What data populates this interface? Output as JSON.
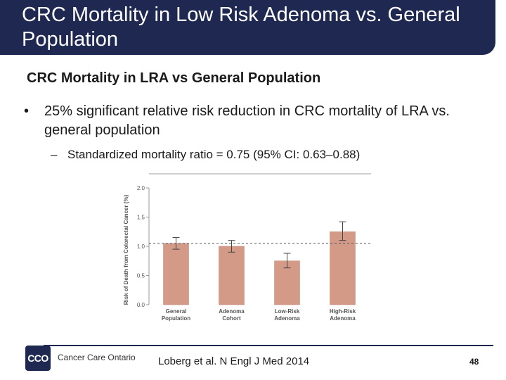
{
  "slide": {
    "title": "CRC Mortality in Low Risk Adenoma vs. General Population",
    "subtitle": "CRC Mortality in LRA vs General Population",
    "bullet_symbol": "•",
    "bullet_text": "25% significant relative risk reduction in CRC mortality of LRA vs. general population",
    "subbullet_symbol": "–",
    "subbullet_text": "Standardized mortality ratio = 0.75 (95% CI: 0.63–0.88)",
    "citation": "Loberg et al. N Engl J Med 2014",
    "page_number": "48"
  },
  "logo": {
    "mark": "CCO",
    "name": "Cancer Care Ontario"
  },
  "colors": {
    "title_bar": "#1e2850",
    "bar_fill": "#d49a88",
    "bar_stroke": "#c08574",
    "axis": "#999999",
    "reference_line": "#555555"
  },
  "chart_data": {
    "type": "bar",
    "title": "",
    "xlabel": "",
    "ylabel": "Risk of Death from Colorectal Cancer (%)",
    "ylim": [
      0,
      2.0
    ],
    "yticks": [
      "0.0",
      "0.5",
      "1.0",
      "1.5",
      "2.0"
    ],
    "ytick_values": [
      0,
      0.5,
      1.0,
      1.5,
      2.0
    ],
    "reference_line": 1.05,
    "categories": [
      [
        "General",
        "Population"
      ],
      [
        "Adenoma",
        "Cohort"
      ],
      [
        "Low-Risk",
        "Adenoma"
      ],
      [
        "High-Risk",
        "Adenoma"
      ]
    ],
    "values": [
      1.05,
      1.0,
      0.75,
      1.25
    ],
    "error_low": [
      0.95,
      0.9,
      0.63,
      1.1
    ],
    "error_high": [
      1.15,
      1.1,
      0.88,
      1.42
    ]
  }
}
